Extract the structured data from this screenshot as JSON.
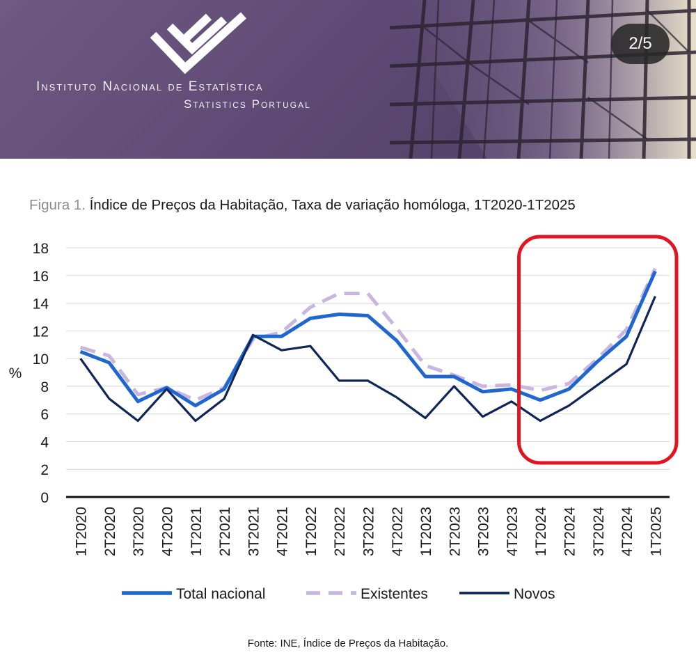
{
  "banner": {
    "org_name": "Instituto Nacional de Estatística",
    "org_sub": "Statistics Portugal",
    "page_counter": "2/5"
  },
  "figure": {
    "label": "Figura 1.",
    "title": "Índice de Preços da Habitação, Taxa de variação homóloga, 1T2020-1T2025"
  },
  "source": {
    "label": "Fonte:",
    "text": "INE, Índice de Preços da Habitação."
  },
  "chart_data": {
    "type": "line",
    "title": "Índice de Preços da Habitação, Taxa de variação homóloga, 1T2020-1T2025",
    "xlabel": "",
    "ylabel": "%",
    "ylim": [
      0,
      18
    ],
    "yticks": [
      0,
      2,
      4,
      6,
      8,
      10,
      12,
      14,
      16,
      18
    ],
    "grid": true,
    "legend_position": "bottom",
    "categories": [
      "1T2020",
      "2T2020",
      "3T2020",
      "4T2020",
      "1T2021",
      "2T2021",
      "3T2021",
      "4T2021",
      "1T2022",
      "2T2022",
      "3T2022",
      "4T2022",
      "1T2023",
      "2T2023",
      "3T2023",
      "4T2023",
      "1T2024",
      "2T2024",
      "3T2024",
      "4T2024",
      "1T2025"
    ],
    "series": [
      {
        "name": "Total nacional",
        "color": "#1f66d1",
        "dash": "solid",
        "values": [
          10.5,
          9.7,
          6.9,
          7.9,
          6.6,
          7.8,
          11.6,
          11.6,
          12.9,
          13.2,
          13.1,
          11.3,
          8.7,
          8.7,
          7.6,
          7.8,
          7.0,
          7.8,
          9.8,
          11.6,
          16.3
        ]
      },
      {
        "name": "Existentes",
        "color": "#c9b5e0",
        "dash": "dashed",
        "values": [
          10.8,
          10.2,
          7.4,
          7.9,
          7.0,
          7.9,
          11.4,
          11.9,
          13.7,
          14.7,
          14.7,
          12.2,
          9.5,
          8.8,
          8.0,
          8.1,
          7.7,
          8.2,
          10.0,
          12.1,
          16.5
        ]
      },
      {
        "name": "Novos",
        "color": "#0f2459",
        "dash": "solid",
        "values": [
          10.0,
          7.1,
          5.5,
          7.8,
          5.5,
          7.1,
          11.7,
          10.6,
          10.9,
          8.4,
          8.4,
          7.2,
          5.7,
          8.0,
          5.8,
          6.9,
          5.5,
          6.6,
          8.1,
          9.6,
          14.5
        ]
      }
    ],
    "highlight": {
      "from": "1T2024",
      "to": "1T2025",
      "color": "#e2141f"
    }
  }
}
